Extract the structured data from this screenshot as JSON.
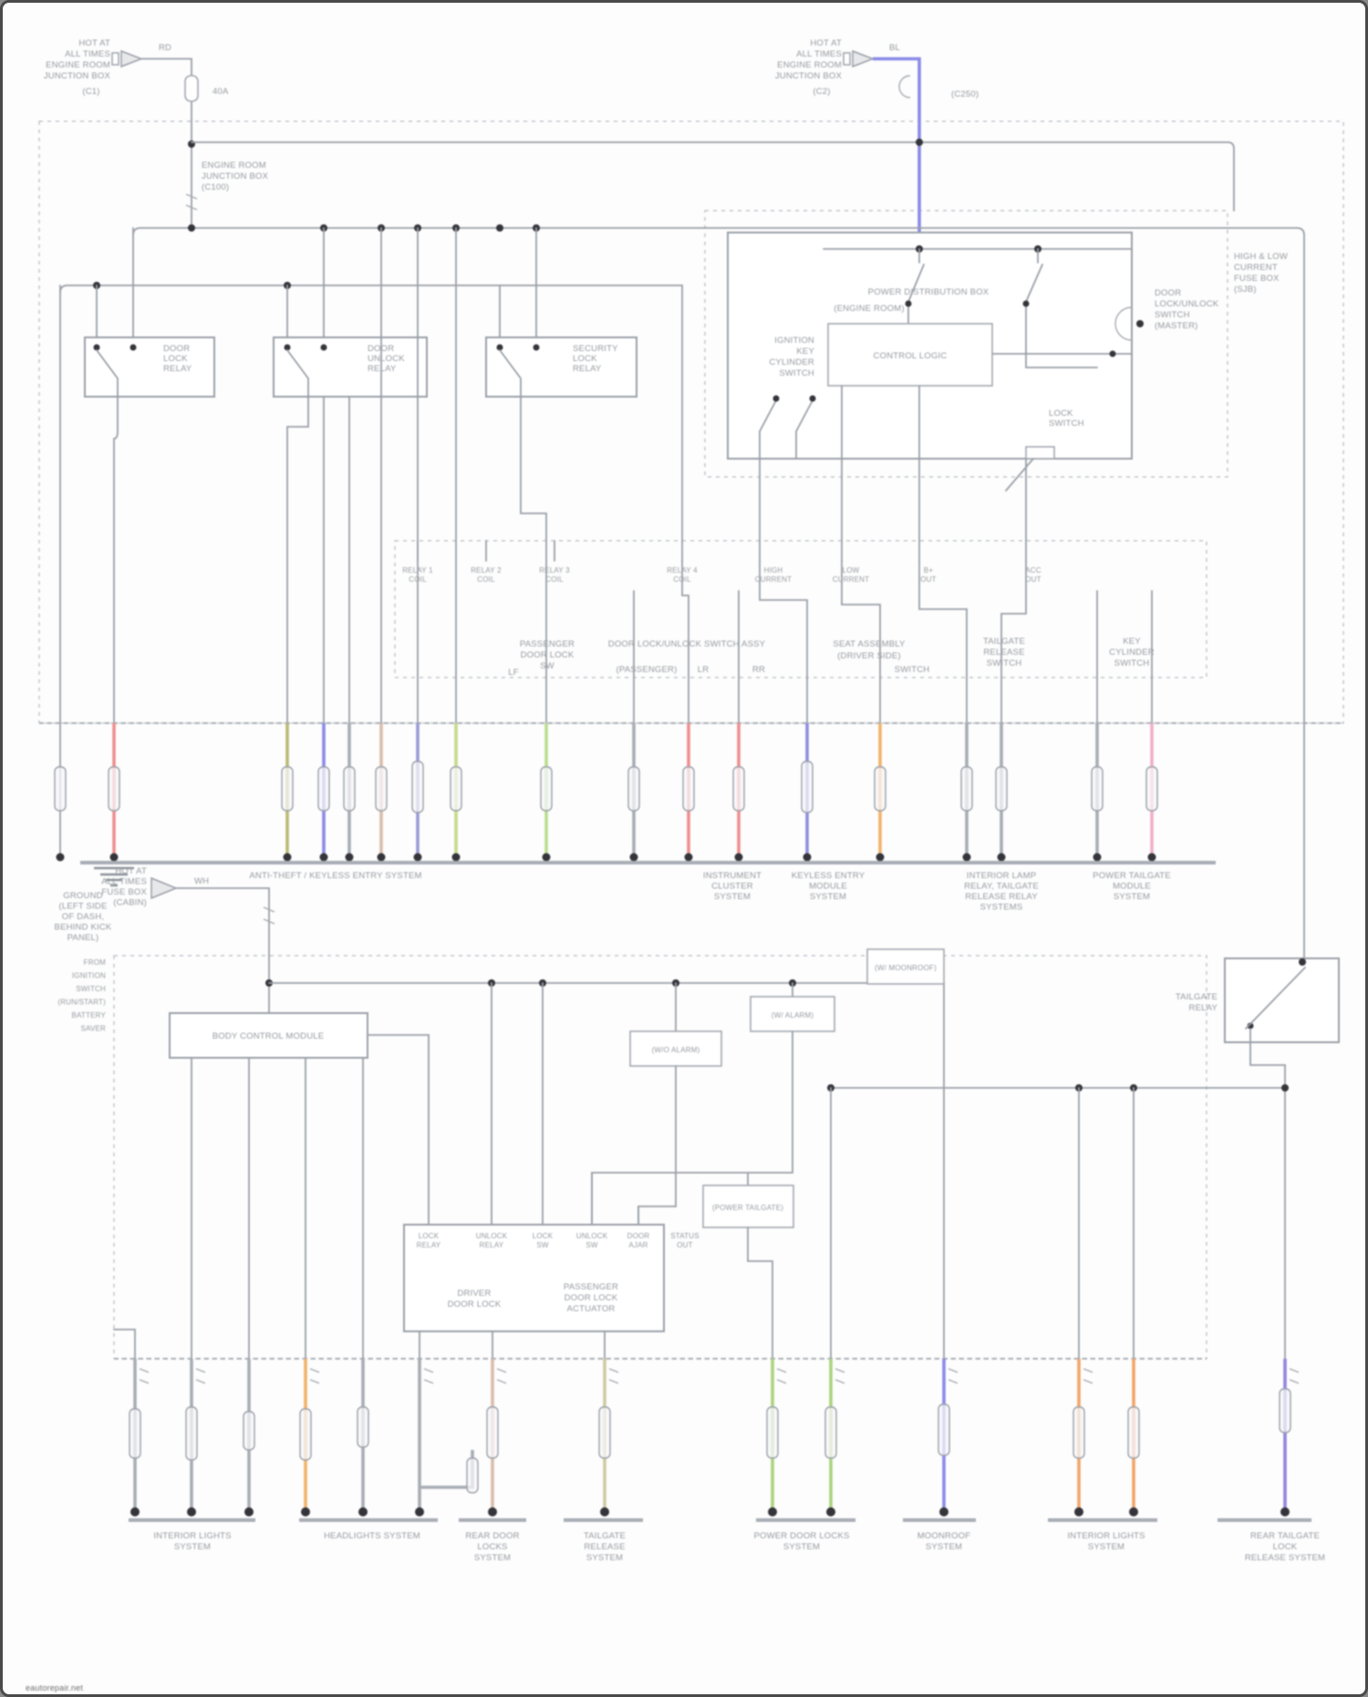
{
  "c": {
    "red": "#ef8f8f",
    "olive": "#b9ba76",
    "blue": "#8a8ae8",
    "tan": "#d9bcab",
    "purple": "#9a9ad8",
    "ylwgreen": "#c6da8a",
    "ltgreen": "#b9dd8e",
    "blupurple": "#8f8fe0",
    "orange": "#f2b36a",
    "gray": "#a8adb5",
    "pink": "#f2aec8",
    "green": "#abd47e",
    "khaki": "#d0caa2",
    "orange2": "#f2a468",
    "violet": "#9184e0",
    "wire": "#9aa0a8"
  },
  "t": {
    "wm": [
      "eautorepair.net"
    ],
    "tl": [
      "HOT AT",
      "ALL TIMES",
      "ENGINE ROOM",
      "JUNCTION BOX"
    ],
    "tl_c": [
      "(C1)"
    ],
    "tl_w": [
      "RD"
    ],
    "tl_f": [
      "40A"
    ],
    "tl2": [
      "ENGINE ROOM",
      "JUNCTION BOX",
      "(C100)"
    ],
    "tr": [
      "HOT AT",
      "ALL TIMES",
      "ENGINE ROOM",
      "JUNCTION BOX"
    ],
    "tr_c": [
      "(C2)"
    ],
    "tr_w": [
      "BL"
    ],
    "tr_cc": [
      "(C250)"
    ],
    "sjb": [
      "HIGH & LOW",
      "CURRENT",
      "FUSE BOX",
      "(SJB)"
    ],
    "r1": [
      "DOOR",
      "LOCK",
      "RELAY"
    ],
    "r2": [
      "DOOR",
      "UNLOCK",
      "RELAY"
    ],
    "r3": [
      "SECURITY",
      "LOCK",
      "RELAY"
    ],
    "pm1": [
      "POWER DISTRIBUTION BOX"
    ],
    "pm2": [
      "(ENGINE ROOM)"
    ],
    "pm_l": [
      "IGNITION",
      "KEY",
      "CYLINDER",
      "SWITCH"
    ],
    "pm_c": [
      "DOOR",
      "LOCK/UNLOCK",
      "SWITCH",
      "(MASTER)"
    ],
    "pm_ib": [
      "CONTROL LOGIC"
    ],
    "pm_ls": [
      "LOCK",
      "SWITCH"
    ],
    "p1": [
      "RELAY 1",
      "COIL"
    ],
    "p2": [
      "RELAY 2",
      "COIL"
    ],
    "p3": [
      "RELAY 3",
      "COIL"
    ],
    "p4": [
      "RELAY 4",
      "COIL"
    ],
    "p5": [
      "HIGH",
      "CURRENT"
    ],
    "p6": [
      "LOW",
      "CURRENT"
    ],
    "p7": [
      "B+",
      "OUT"
    ],
    "p8": [
      "ACC",
      "OUT"
    ],
    "g1": [
      "PASSENGER",
      "DOOR LOCK",
      "SW"
    ],
    "g1b": [
      "LF"
    ],
    "g2": [
      "DOOR LOCK/UNLOCK SWITCH ASSY"
    ],
    "g2b": [
      "(PASSENGER)"
    ],
    "g2c": [
      "LR"
    ],
    "g2d": [
      "RR"
    ],
    "g3": [
      "SEAT ASSEMBLY",
      "(DRIVER SIDE)"
    ],
    "g3b": [
      "SWITCH"
    ],
    "g4": [
      "TAILGATE",
      "RELEASE",
      "SWITCH"
    ],
    "g5": [
      "KEY",
      "CYLINDER",
      "SWITCH"
    ],
    "gnd": [
      "GROUND",
      "(LEFT SIDE",
      "OF DASH,",
      "BEHIND KICK",
      "PANEL)"
    ],
    "ab1": [
      "ANTI-THEFT / KEYLESS ENTRY SYSTEM"
    ],
    "ab2": [
      "INSTRUMENT",
      "CLUSTER",
      "SYSTEM"
    ],
    "ab3": [
      "KEYLESS ENTRY",
      "MODULE",
      "SYSTEM"
    ],
    "ab4": [
      "INTERIOR LAMP",
      "RELAY, TAILGATE",
      "RELEASE RELAY",
      "SYSTEMS"
    ],
    "ab5": [
      "POWER TAILGATE",
      "MODULE",
      "SYSTEM"
    ],
    "hot2": [
      "HOT AT",
      "ALL TIMES",
      "FUSE BOX",
      "(CABIN)"
    ],
    "hot2_w": [
      "WH"
    ],
    "lcol": [
      "FROM",
      "IGNITION",
      "SWITCH",
      "(RUN/START)",
      "BATTERY",
      "SAVER"
    ],
    "modA": [
      "BODY CONTROL MODULE"
    ],
    "s1": [
      "(W/ MOONROOF)"
    ],
    "s2": [
      "(W/ ALARM)"
    ],
    "s3": [
      "(W/O ALARM)"
    ],
    "w1": [
      "(POWER TAILGATE)"
    ],
    "b2l": [
      "TAILGATE",
      "RELAY"
    ],
    "ml_l": [
      "DRIVER",
      "DOOR LOCK"
    ],
    "ml_r": [
      "PASSENGER",
      "DOOR LOCK",
      "ACTUATOR"
    ],
    "mlp1": [
      "LOCK",
      "RELAY"
    ],
    "mlp2": [
      "UNLOCK",
      "RELAY"
    ],
    "mlp3": [
      "LOCK",
      "SW"
    ],
    "mlp4": [
      "UNLOCK",
      "SW"
    ],
    "mlp5": [
      "DOOR",
      "AJAR"
    ],
    "mlp6": [
      "STATUS",
      "OUT"
    ],
    "ga": [
      "INTERIOR LIGHTS",
      "SYSTEM"
    ],
    "gb": [
      "HEADLIGHTS SYSTEM"
    ],
    "gc": [
      "REAR DOOR",
      "LOCKS",
      "SYSTEM"
    ],
    "gd": [
      "TAILGATE",
      "RELEASE",
      "SYSTEM"
    ],
    "ge": [
      "POWER DOOR LOCKS",
      "SYSTEM"
    ],
    "gf": [
      "MOONROOF",
      "SYSTEM"
    ],
    "gg": [
      "INTERIOR LIGHTS",
      "SYSTEM"
    ],
    "gh": [
      "REAR TAILGATE",
      "LOCK",
      "RELEASE SYSTEM"
    ]
  }
}
